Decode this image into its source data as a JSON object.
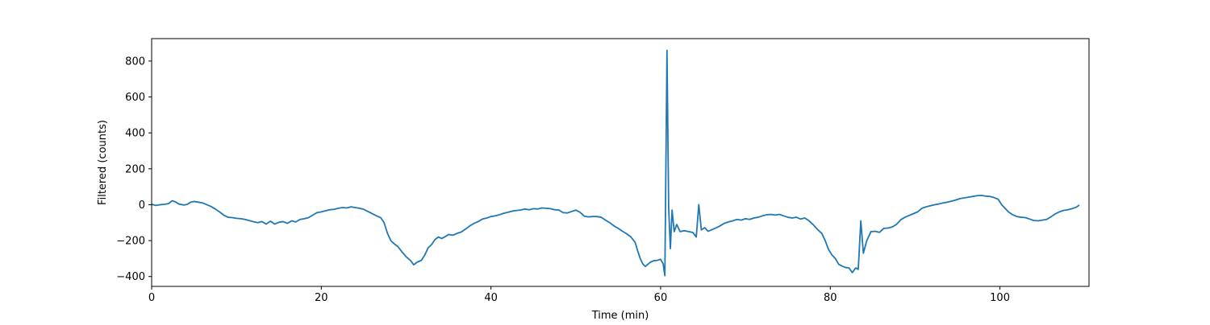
{
  "chart_data": {
    "type": "line",
    "title": "",
    "xlabel": "Time (min)",
    "ylabel": "Filtered (counts)",
    "xlim": [
      0,
      110.5
    ],
    "ylim": [
      -455,
      925
    ],
    "x_ticks": [
      0,
      20,
      40,
      60,
      80,
      100
    ],
    "y_ticks": [
      -400,
      -200,
      0,
      200,
      400,
      600,
      800
    ],
    "grid": false,
    "legend": "none",
    "line_color": "#1f77b4",
    "series": [
      {
        "points": [
          [
            0.0,
            2
          ],
          [
            0.5,
            -4
          ],
          [
            1.0,
            0
          ],
          [
            1.5,
            2
          ],
          [
            2.0,
            6
          ],
          [
            2.4,
            22
          ],
          [
            2.8,
            16
          ],
          [
            3.2,
            4
          ],
          [
            3.8,
            -2
          ],
          [
            4.2,
            2
          ],
          [
            4.6,
            14
          ],
          [
            5.0,
            18
          ],
          [
            5.5,
            14
          ],
          [
            6.0,
            10
          ],
          [
            6.5,
            0
          ],
          [
            7.0,
            -10
          ],
          [
            7.5,
            -24
          ],
          [
            8.0,
            -40
          ],
          [
            8.5,
            -58
          ],
          [
            9.0,
            -70
          ],
          [
            9.5,
            -72
          ],
          [
            10.0,
            -76
          ],
          [
            10.5,
            -78
          ],
          [
            11.0,
            -82
          ],
          [
            11.5,
            -88
          ],
          [
            12.0,
            -95
          ],
          [
            12.5,
            -100
          ],
          [
            13.0,
            -94
          ],
          [
            13.5,
            -108
          ],
          [
            14.0,
            -92
          ],
          [
            14.5,
            -108
          ],
          [
            15.0,
            -98
          ],
          [
            15.5,
            -94
          ],
          [
            16.0,
            -104
          ],
          [
            16.5,
            -90
          ],
          [
            17.0,
            -96
          ],
          [
            17.5,
            -82
          ],
          [
            18.0,
            -78
          ],
          [
            18.5,
            -72
          ],
          [
            19.0,
            -58
          ],
          [
            19.5,
            -44
          ],
          [
            20.0,
            -40
          ],
          [
            20.5,
            -34
          ],
          [
            21.0,
            -28
          ],
          [
            21.5,
            -26
          ],
          [
            22.0,
            -20
          ],
          [
            22.5,
            -16
          ],
          [
            23.0,
            -18
          ],
          [
            23.5,
            -12
          ],
          [
            24.0,
            -16
          ],
          [
            24.5,
            -20
          ],
          [
            25.0,
            -26
          ],
          [
            25.5,
            -38
          ],
          [
            26.0,
            -50
          ],
          [
            26.5,
            -62
          ],
          [
            27.0,
            -72
          ],
          [
            27.4,
            -100
          ],
          [
            27.8,
            -160
          ],
          [
            28.2,
            -200
          ],
          [
            28.6,
            -218
          ],
          [
            29.0,
            -232
          ],
          [
            29.5,
            -262
          ],
          [
            30.0,
            -290
          ],
          [
            30.5,
            -310
          ],
          [
            30.9,
            -335
          ],
          [
            31.3,
            -320
          ],
          [
            31.8,
            -310
          ],
          [
            32.2,
            -280
          ],
          [
            32.6,
            -240
          ],
          [
            33.0,
            -222
          ],
          [
            33.4,
            -194
          ],
          [
            33.8,
            -180
          ],
          [
            34.2,
            -188
          ],
          [
            34.6,
            -178
          ],
          [
            35.0,
            -166
          ],
          [
            35.5,
            -170
          ],
          [
            36.0,
            -160
          ],
          [
            36.5,
            -152
          ],
          [
            37.0,
            -136
          ],
          [
            37.5,
            -118
          ],
          [
            38.0,
            -104
          ],
          [
            38.5,
            -94
          ],
          [
            39.0,
            -80
          ],
          [
            39.5,
            -74
          ],
          [
            40.0,
            -66
          ],
          [
            40.5,
            -62
          ],
          [
            41.0,
            -56
          ],
          [
            41.5,
            -48
          ],
          [
            42.0,
            -42
          ],
          [
            42.5,
            -36
          ],
          [
            43.0,
            -32
          ],
          [
            43.5,
            -30
          ],
          [
            44.0,
            -24
          ],
          [
            44.5,
            -28
          ],
          [
            45.0,
            -22
          ],
          [
            45.5,
            -24
          ],
          [
            46.0,
            -18
          ],
          [
            46.5,
            -20
          ],
          [
            47.0,
            -22
          ],
          [
            47.5,
            -28
          ],
          [
            48.0,
            -30
          ],
          [
            48.5,
            -44
          ],
          [
            49.0,
            -46
          ],
          [
            49.5,
            -38
          ],
          [
            50.0,
            -30
          ],
          [
            50.5,
            -42
          ],
          [
            51.0,
            -64
          ],
          [
            51.5,
            -68
          ],
          [
            52.0,
            -66
          ],
          [
            52.5,
            -66
          ],
          [
            53.0,
            -70
          ],
          [
            53.5,
            -86
          ],
          [
            54.0,
            -100
          ],
          [
            54.5,
            -118
          ],
          [
            55.0,
            -132
          ],
          [
            55.5,
            -148
          ],
          [
            56.0,
            -162
          ],
          [
            56.5,
            -180
          ],
          [
            57.0,
            -210
          ],
          [
            57.3,
            -258
          ],
          [
            57.6,
            -300
          ],
          [
            57.9,
            -330
          ],
          [
            58.2,
            -344
          ],
          [
            58.5,
            -332
          ],
          [
            58.8,
            -320
          ],
          [
            59.2,
            -312
          ],
          [
            59.6,
            -310
          ],
          [
            60.0,
            -304
          ],
          [
            60.3,
            -330
          ],
          [
            60.5,
            -395
          ],
          [
            60.75,
            860
          ],
          [
            60.95,
            -20
          ],
          [
            61.15,
            -245
          ],
          [
            61.35,
            -30
          ],
          [
            61.6,
            -150
          ],
          [
            61.9,
            -110
          ],
          [
            62.3,
            -150
          ],
          [
            62.8,
            -145
          ],
          [
            63.3,
            -150
          ],
          [
            63.8,
            -155
          ],
          [
            64.2,
            -180
          ],
          [
            64.5,
            0
          ],
          [
            64.8,
            -140
          ],
          [
            65.2,
            -128
          ],
          [
            65.6,
            -148
          ],
          [
            66.0,
            -140
          ],
          [
            66.5,
            -130
          ],
          [
            67.0,
            -118
          ],
          [
            67.5,
            -104
          ],
          [
            68.0,
            -96
          ],
          [
            68.5,
            -90
          ],
          [
            69.0,
            -82
          ],
          [
            69.5,
            -86
          ],
          [
            70.0,
            -78
          ],
          [
            70.5,
            -82
          ],
          [
            71.0,
            -74
          ],
          [
            71.5,
            -70
          ],
          [
            72.0,
            -62
          ],
          [
            72.5,
            -56
          ],
          [
            73.0,
            -54
          ],
          [
            73.5,
            -58
          ],
          [
            74.0,
            -54
          ],
          [
            74.5,
            -62
          ],
          [
            75.0,
            -70
          ],
          [
            75.5,
            -74
          ],
          [
            76.0,
            -70
          ],
          [
            76.5,
            -80
          ],
          [
            77.0,
            -74
          ],
          [
            77.5,
            -90
          ],
          [
            78.0,
            -112
          ],
          [
            78.5,
            -138
          ],
          [
            79.0,
            -160
          ],
          [
            79.4,
            -200
          ],
          [
            79.8,
            -250
          ],
          [
            80.2,
            -280
          ],
          [
            80.6,
            -300
          ],
          [
            81.0,
            -332
          ],
          [
            81.4,
            -342
          ],
          [
            81.8,
            -350
          ],
          [
            82.2,
            -352
          ],
          [
            82.6,
            -378
          ],
          [
            83.0,
            -352
          ],
          [
            83.3,
            -360
          ],
          [
            83.6,
            -90
          ],
          [
            83.9,
            -270
          ],
          [
            84.3,
            -200
          ],
          [
            84.8,
            -150
          ],
          [
            85.3,
            -148
          ],
          [
            85.8,
            -154
          ],
          [
            86.3,
            -132
          ],
          [
            86.8,
            -130
          ],
          [
            87.3,
            -124
          ],
          [
            87.8,
            -110
          ],
          [
            88.3,
            -84
          ],
          [
            88.8,
            -70
          ],
          [
            89.3,
            -60
          ],
          [
            89.8,
            -50
          ],
          [
            90.3,
            -40
          ],
          [
            90.8,
            -20
          ],
          [
            91.3,
            -12
          ],
          [
            91.8,
            -6
          ],
          [
            92.3,
            0
          ],
          [
            92.8,
            4
          ],
          [
            93.3,
            10
          ],
          [
            93.8,
            14
          ],
          [
            94.3,
            20
          ],
          [
            94.8,
            26
          ],
          [
            95.3,
            34
          ],
          [
            95.8,
            38
          ],
          [
            96.3,
            42
          ],
          [
            96.8,
            46
          ],
          [
            97.3,
            50
          ],
          [
            97.8,
            52
          ],
          [
            98.3,
            48
          ],
          [
            98.8,
            46
          ],
          [
            99.3,
            40
          ],
          [
            99.8,
            30
          ],
          [
            100.2,
            0
          ],
          [
            100.6,
            -20
          ],
          [
            101.0,
            -40
          ],
          [
            101.5,
            -56
          ],
          [
            102.0,
            -66
          ],
          [
            102.5,
            -70
          ],
          [
            103.0,
            -72
          ],
          [
            103.5,
            -80
          ],
          [
            104.0,
            -88
          ],
          [
            104.5,
            -90
          ],
          [
            105.0,
            -86
          ],
          [
            105.5,
            -82
          ],
          [
            106.0,
            -68
          ],
          [
            106.5,
            -52
          ],
          [
            107.0,
            -40
          ],
          [
            107.5,
            -32
          ],
          [
            108.0,
            -28
          ],
          [
            108.5,
            -22
          ],
          [
            109.0,
            -14
          ],
          [
            109.3,
            -4
          ]
        ]
      }
    ]
  }
}
